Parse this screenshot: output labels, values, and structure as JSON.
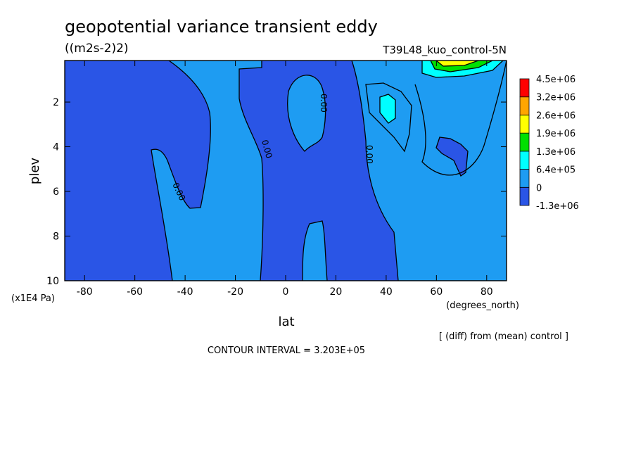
{
  "chart_data": {
    "type": "contour",
    "title": "geopotential variance transient eddy",
    "subtitle": "((m2s-2)2)",
    "dataset": "T39L48_kuo_control-5N",
    "x_label": "lat",
    "x_units": "(degrees_north)",
    "y_label": "plev",
    "y_units": "(x1E4 Pa)",
    "note": "[ (diff) from (mean) control ]",
    "contour_interval": "CONTOUR INTERVAL = 3.203E+05",
    "xlim": [
      -87.9,
      87.9
    ],
    "xticks": [
      -80,
      -60,
      -40,
      -20,
      0,
      20,
      40,
      60,
      80
    ],
    "ylim": [
      0.14,
      10
    ],
    "yticks": [
      2,
      4,
      6,
      8,
      10
    ],
    "y_inverted": true,
    "levels": [
      {
        "value": -1300000,
        "label": "-1.3e+06"
      },
      0,
      {
        "value": 640000,
        "label": "6.4e+05"
      },
      {
        "value": 1300000,
        "label": "1.3e+06"
      },
      {
        "value": 1900000,
        "label": "1.9e+06"
      },
      {
        "value": 2600000,
        "label": "2.6e+06"
      },
      {
        "value": 3200000,
        "label": "3.2e+06"
      },
      {
        "value": 4500000,
        "label": "4.5e+06"
      }
    ],
    "colors": [
      "#2a55e6",
      "#1e9cf2",
      "#00ffff",
      "#00e000",
      "#ffff00",
      "#ffa500",
      "#ff0000"
    ],
    "contour_labels": [
      "0.00",
      "0.00",
      "0.00",
      "0.00"
    ]
  }
}
